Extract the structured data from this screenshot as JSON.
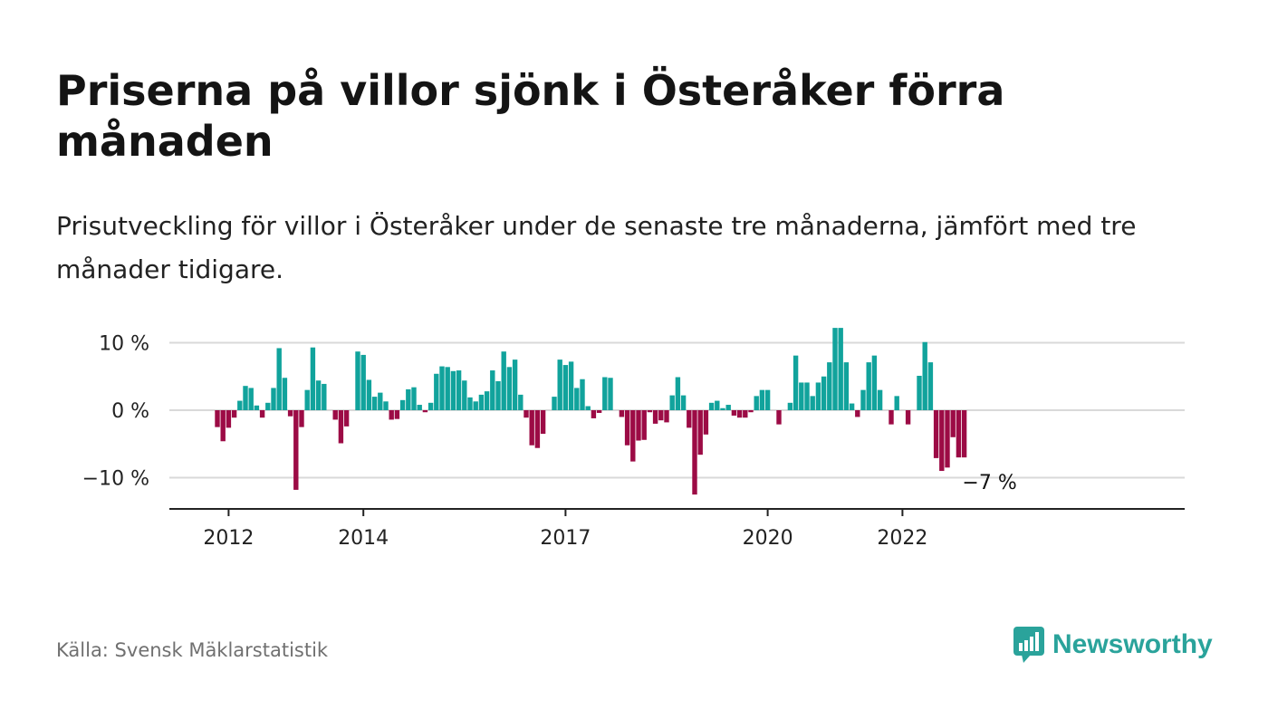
{
  "header": {
    "title": "Priserna på villor sjönk i Österåker förra månaden",
    "subtitle": "Prisutveckling för villor i Österåker under de senaste tre månaderna, jämfört med tre månader tidigare."
  },
  "footer": {
    "source": "Källa: Svensk Mäklarstatistik",
    "brand": "Newsworthy",
    "brand_icon": "bar-chart-speech-bubble-icon"
  },
  "colors": {
    "positive": "#11a39c",
    "negative": "#9c0b45",
    "grid": "#d9d9d9",
    "axis": "#222222",
    "brand": "#2aa39b"
  },
  "chart_data": {
    "type": "bar",
    "start": "2011-11",
    "x_ticks": [
      {
        "label": "2012",
        "month": "2012-01"
      },
      {
        "label": "2014",
        "month": "2014-01"
      },
      {
        "label": "2017",
        "month": "2017-01"
      },
      {
        "label": "2020",
        "month": "2020-01"
      },
      {
        "label": "2022",
        "month": "2022-01"
      }
    ],
    "y_ticks": [
      {
        "label": "10 %",
        "value": 10
      },
      {
        "label": "0 %",
        "value": 0
      },
      {
        "label": "−10 %",
        "value": -10
      }
    ],
    "ylim": [
      -14.5,
      12
    ],
    "grid": true,
    "legend": "none",
    "last_value_label": "−7 %",
    "values": [
      -2.5,
      -4.6,
      -2.6,
      -1.1,
      1.4,
      3.6,
      3.3,
      0.7,
      -1.1,
      1.1,
      3.3,
      9.2,
      4.8,
      -0.9,
      -11.8,
      -2.5,
      3.0,
      9.3,
      4.4,
      3.9,
      0,
      -1.4,
      -4.9,
      -2.4,
      0,
      8.7,
      8.2,
      4.5,
      2.0,
      2.6,
      1.3,
      -1.4,
      -1.3,
      1.5,
      3.1,
      3.4,
      0.8,
      -0.3,
      1.1,
      5.4,
      6.5,
      6.4,
      5.8,
      5.9,
      4.4,
      1.9,
      1.3,
      2.3,
      2.8,
      5.9,
      4.3,
      8.7,
      6.4,
      7.5,
      2.3,
      -1.1,
      -5.2,
      -5.6,
      -3.5,
      0,
      2.0,
      7.5,
      6.7,
      7.2,
      3.3,
      4.6,
      0.6,
      -1.2,
      -0.4,
      4.9,
      4.8,
      0,
      -1.0,
      -5.2,
      -7.6,
      -4.5,
      -4.4,
      -0.3,
      -2.0,
      -1.5,
      -1.8,
      2.2,
      4.9,
      2.2,
      -2.6,
      -12.5,
      -6.6,
      -3.6,
      1.1,
      1.4,
      0.3,
      0.8,
      -0.8,
      -1.1,
      -1.1,
      -0.3,
      2.1,
      3.0,
      3.0,
      0,
      -2.1,
      0,
      1.1,
      8.1,
      4.1,
      4.1,
      2.1,
      4.1,
      5.0,
      7.1,
      12.2,
      12.2,
      7.1,
      1.0,
      -1.0,
      3.0,
      7.1,
      8.1,
      3.0,
      0,
      -2.1,
      2.1,
      0,
      -2.1,
      0,
      5.1,
      10.1,
      7.1,
      -7.1,
      -9.0,
      -8.5,
      -4.0,
      -7.0,
      -7.0
    ]
  }
}
